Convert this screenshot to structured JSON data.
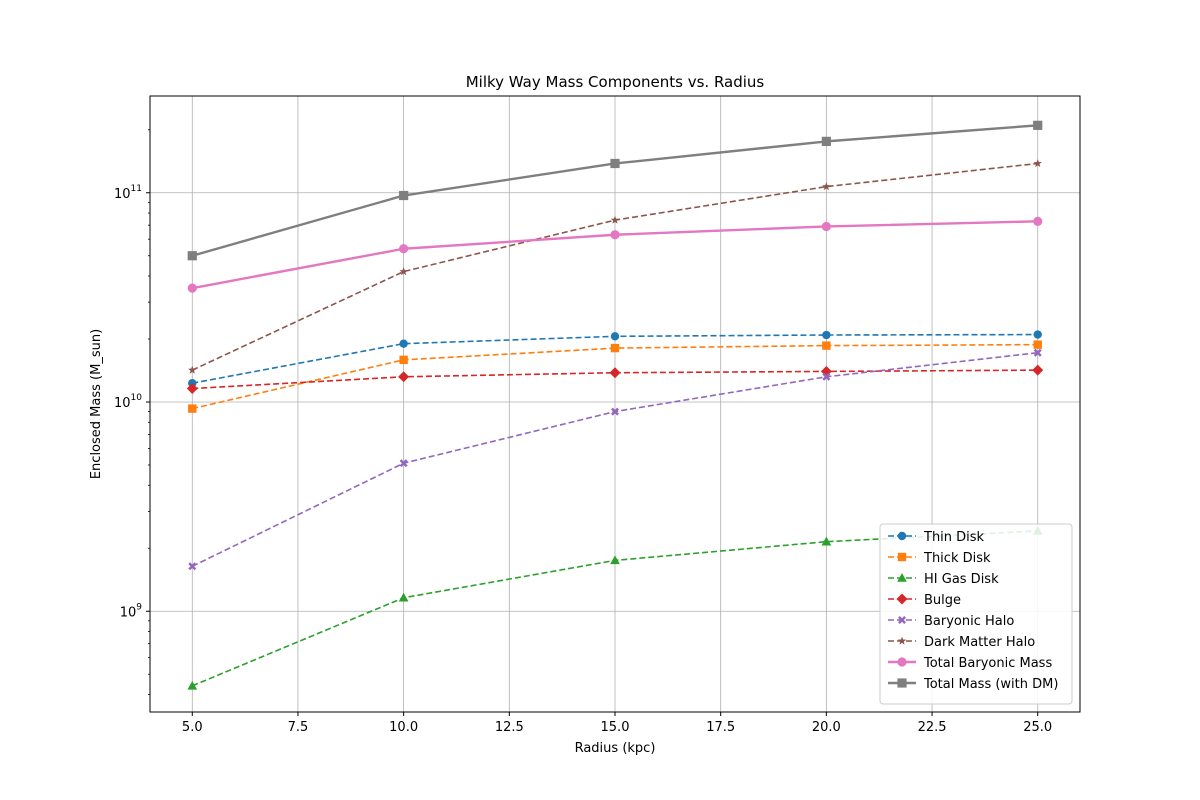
{
  "chart_data": {
    "type": "line",
    "title": "Milky Way Mass Components vs. Radius",
    "xlabel": "Radius (kpc)",
    "ylabel": "Enclosed Mass (M_sun)",
    "yscale": "log",
    "xlim": [
      4.0,
      26.0
    ],
    "ylim": [
      330000000.0,
      290000000000.0
    ],
    "grid": true,
    "legend_position": "lower-right",
    "x": [
      5,
      10,
      15,
      20,
      25
    ],
    "x_ticks": [
      5.0,
      7.5,
      10.0,
      12.5,
      15.0,
      17.5,
      20.0,
      22.5,
      25.0
    ],
    "x_tick_labels": [
      "5.0",
      "7.5",
      "10.0",
      "12.5",
      "15.0",
      "17.5",
      "20.0",
      "22.5",
      "25.0"
    ],
    "y_ticks": [
      {
        "value": 1000000000.0,
        "base": "10",
        "exp": "9"
      },
      {
        "value": 10000000000.0,
        "base": "10",
        "exp": "10"
      },
      {
        "value": 100000000000.0,
        "base": "10",
        "exp": "11"
      }
    ],
    "series": [
      {
        "name": "Thin Disk",
        "color": "#1f77b4",
        "linestyle": "dashed",
        "marker": "circle",
        "values": [
          12300000000.0,
          19000000000.0,
          20600000000.0,
          20900000000.0,
          21000000000.0
        ]
      },
      {
        "name": "Thick Disk",
        "color": "#ff7f0e",
        "linestyle": "dashed",
        "marker": "square",
        "values": [
          9300000000.0,
          15900000000.0,
          18100000000.0,
          18600000000.0,
          18800000000.0
        ]
      },
      {
        "name": "HI Gas Disk",
        "color": "#2ca02c",
        "linestyle": "dashed",
        "marker": "triangle",
        "values": [
          440000000.0,
          1160000000.0,
          1750000000.0,
          2150000000.0,
          2420000000.0
        ]
      },
      {
        "name": "Bulge",
        "color": "#d62728",
        "linestyle": "dashed",
        "marker": "diamond",
        "values": [
          11600000000.0,
          13200000000.0,
          13800000000.0,
          14000000000.0,
          14200000000.0
        ]
      },
      {
        "name": "Baryonic Halo",
        "color": "#9467bd",
        "linestyle": "dashed",
        "marker": "x",
        "values": [
          1640000000.0,
          5100000000.0,
          9000000000.0,
          13200000000.0,
          17200000000.0
        ]
      },
      {
        "name": "Dark Matter Halo",
        "color": "#8c564b",
        "linestyle": "dashed",
        "marker": "star",
        "values": [
          14200000000.0,
          42000000000.0,
          74000000000.0,
          107000000000.0,
          138000000000.0
        ]
      },
      {
        "name": "Total Baryonic Mass",
        "color": "#e377c2",
        "linestyle": "solid",
        "marker": "circle",
        "values": [
          35000000000.0,
          54000000000.0,
          63000000000.0,
          69000000000.0,
          73000000000.0
        ]
      },
      {
        "name": "Total Mass (with DM)",
        "color": "#7f7f7f",
        "linestyle": "solid",
        "marker": "square",
        "values": [
          50000000000.0,
          97000000000.0,
          138000000000.0,
          176000000000.0,
          210000000000.0
        ]
      }
    ]
  }
}
